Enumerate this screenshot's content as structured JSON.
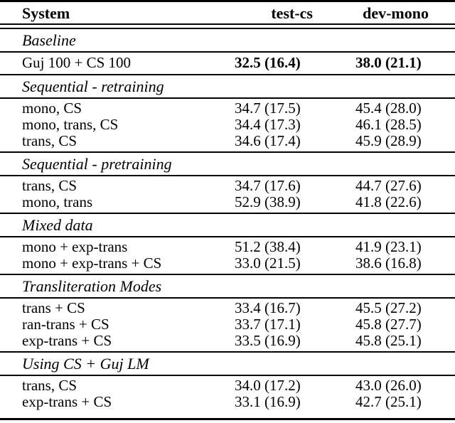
{
  "page": {
    "background": "#ffffff",
    "text_color": "#000000",
    "rule_color": "#000000"
  },
  "table": {
    "columns": [
      {
        "label": "System"
      },
      {
        "label": "test-cs"
      },
      {
        "label": "dev-mono"
      }
    ],
    "sections": [
      {
        "title": "Baseline",
        "rows": [
          {
            "system": "Guj 100 + CS 100",
            "test_cs": "32.5 (16.4)",
            "dev_mono": "38.0 (21.1)",
            "bold_values": true
          }
        ]
      },
      {
        "title": "Sequential - retraining",
        "rows": [
          {
            "system": "mono, CS",
            "test_cs": "34.7 (17.5)",
            "dev_mono": "45.4 (28.0)"
          },
          {
            "system": "mono, trans, CS",
            "test_cs": "34.4 (17.3)",
            "dev_mono": "46.1 (28.5)"
          },
          {
            "system": "trans, CS",
            "test_cs": "34.6 (17.4)",
            "dev_mono": "45.9 (28.9)"
          }
        ]
      },
      {
        "title": "Sequential - pretraining",
        "rows": [
          {
            "system": "trans, CS",
            "test_cs": "34.7 (17.6)",
            "dev_mono": "44.7 (27.6)"
          },
          {
            "system": "mono, trans",
            "test_cs": "52.9 (38.9)",
            "dev_mono": "41.8 (22.6)"
          }
        ]
      },
      {
        "title": "Mixed data",
        "rows": [
          {
            "system": "mono + exp-trans",
            "test_cs": "51.2 (38.4)",
            "dev_mono": "41.9 (23.1)"
          },
          {
            "system": "mono + exp-trans + CS",
            "test_cs": "33.0 (21.5)",
            "dev_mono": "38.6 (16.8)"
          }
        ]
      },
      {
        "title": "Transliteration Modes",
        "rows": [
          {
            "system": "trans + CS",
            "test_cs": "33.4 (16.7)",
            "dev_mono": "45.5 (27.2)"
          },
          {
            "system": "ran-trans + CS",
            "test_cs": "33.7 (17.1)",
            "dev_mono": "45.8 (27.7)"
          },
          {
            "system": "exp-trans + CS",
            "test_cs": "33.5 (16.9)",
            "dev_mono": "45.8 (25.1)"
          }
        ]
      },
      {
        "title": "Using CS + Guj LM",
        "rows": [
          {
            "system": "trans, CS",
            "test_cs": "34.0 (17.2)",
            "dev_mono": "43.0 (26.0)"
          },
          {
            "system": "exp-trans + CS",
            "test_cs": "33.1 (16.9)",
            "dev_mono": "42.7 (25.1)"
          }
        ]
      }
    ]
  }
}
